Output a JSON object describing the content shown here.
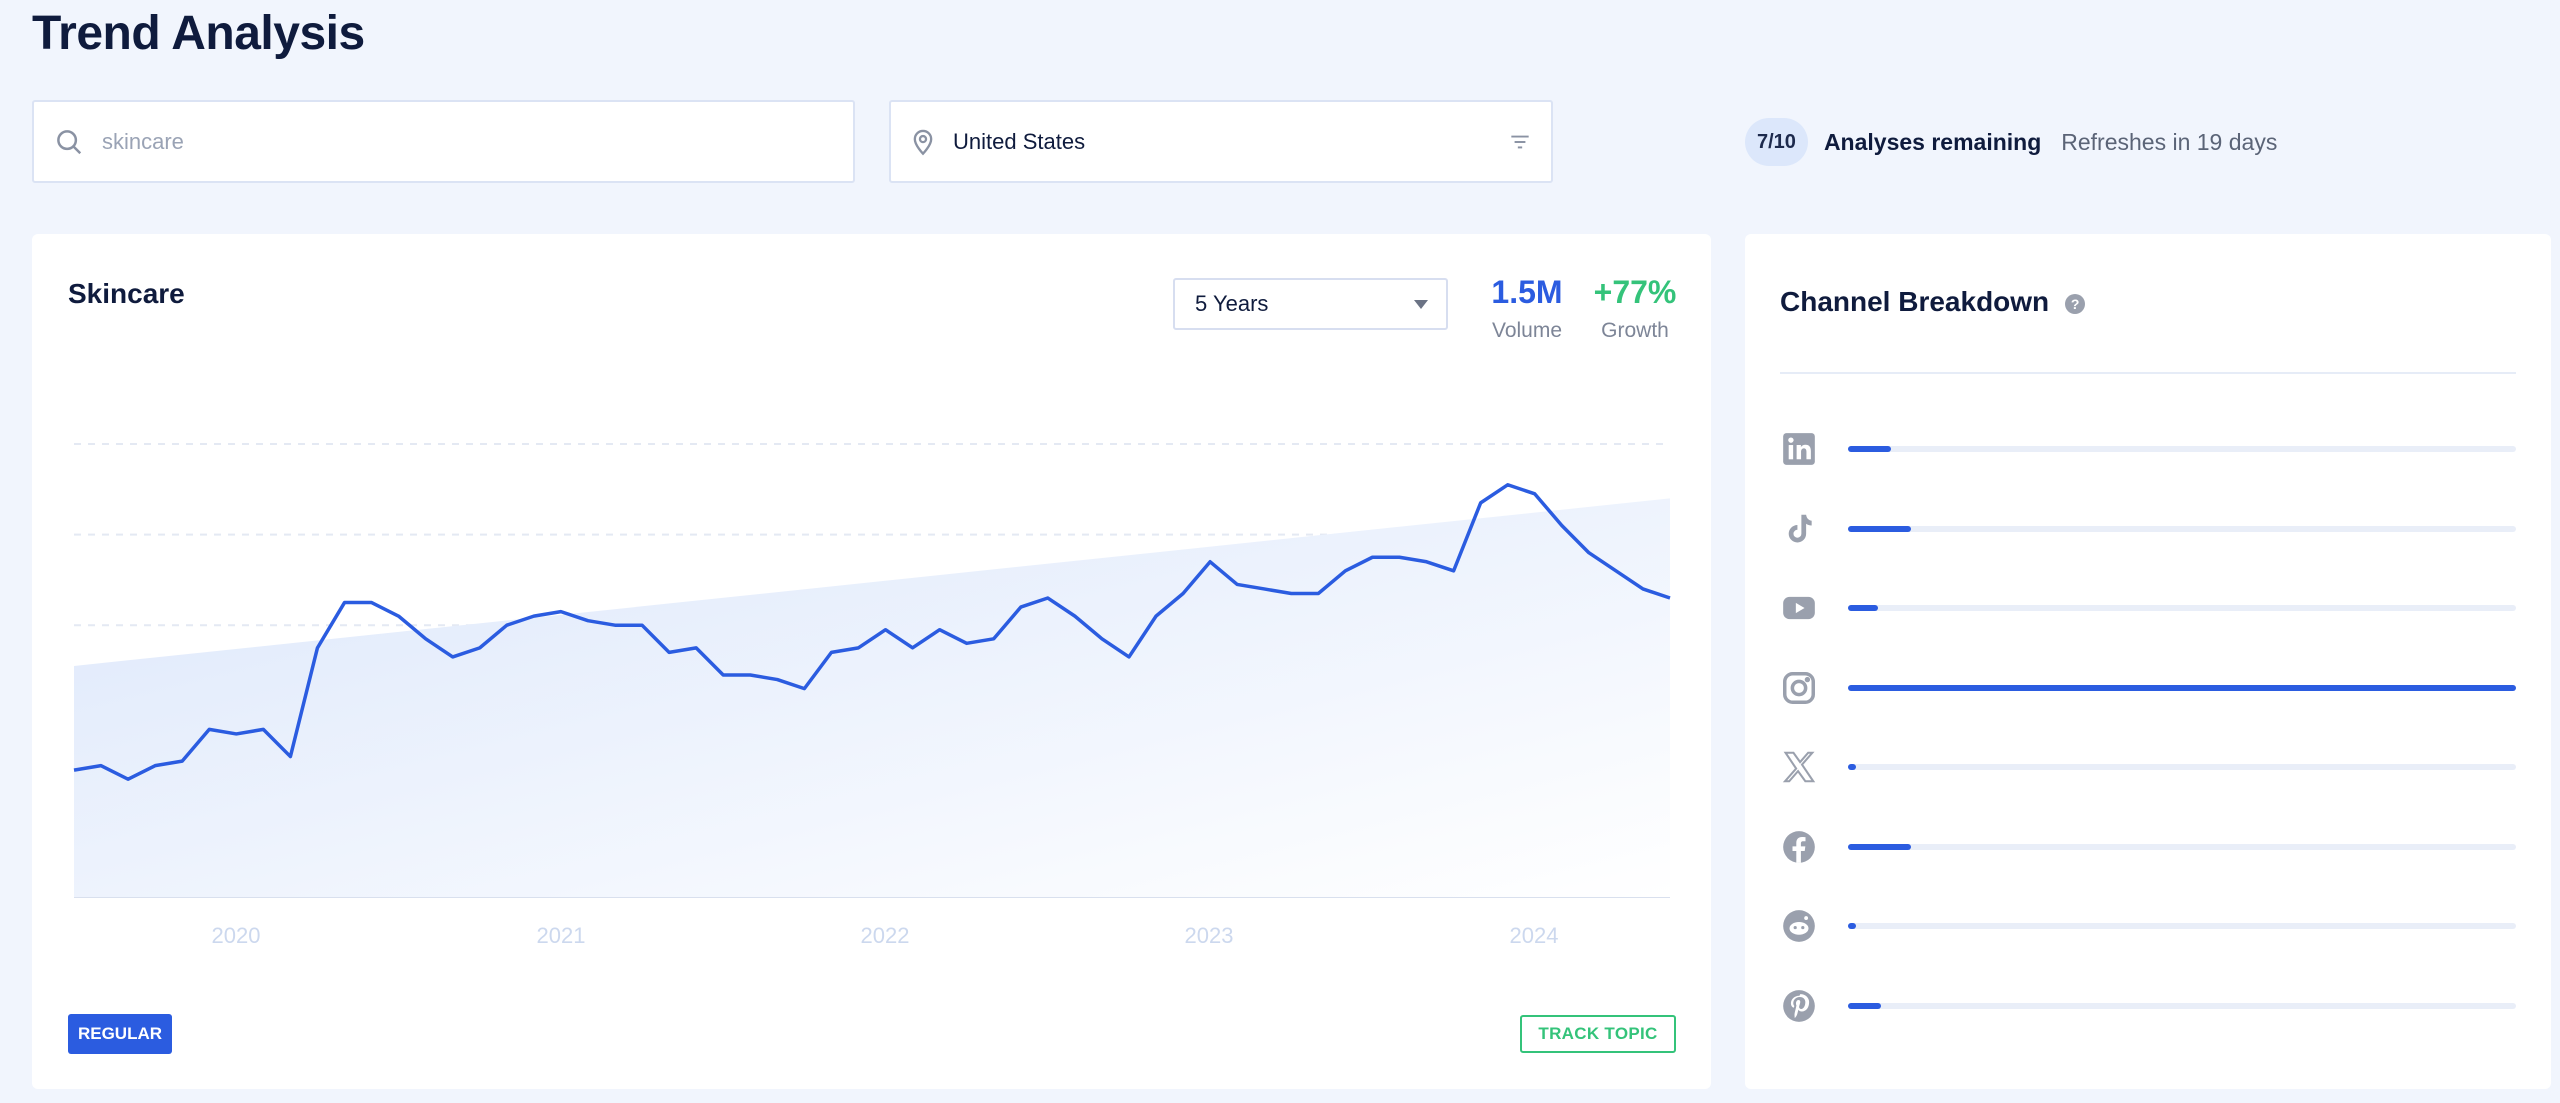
{
  "page": {
    "title": "Trend Analysis"
  },
  "search": {
    "placeholder": "skincare"
  },
  "location": {
    "value": "United States"
  },
  "quota": {
    "badge": "7/10",
    "label": "Analyses remaining",
    "refresh": "Refreshes in 19 days"
  },
  "topic": {
    "title": "Skincare",
    "period": "5 Years",
    "volume_value": "1.5M",
    "volume_label": "Volume",
    "growth_value": "+77%",
    "growth_label": "Growth",
    "type_badge": "REGULAR",
    "track_button": "TRACK TOPIC"
  },
  "colors": {
    "accent": "#2b5ce0",
    "growth": "#34c37a",
    "background": "#f1f5fd"
  },
  "chart_data": {
    "type": "line",
    "title": "",
    "xlabel": "",
    "ylabel": "",
    "x_ticks": [
      "2020",
      "2021",
      "2022",
      "2023",
      "2024"
    ],
    "grid": true,
    "series": [
      {
        "values": [
          28,
          29,
          26,
          29,
          30,
          37,
          36,
          37,
          31,
          55,
          65,
          65,
          62,
          57,
          53,
          55,
          60,
          62,
          63,
          61,
          60,
          60,
          54,
          55,
          49,
          49,
          48,
          46,
          54,
          55,
          59,
          55,
          59,
          56,
          57,
          64,
          66,
          62,
          57,
          53,
          62,
          67,
          74,
          69,
          68,
          67,
          67,
          72,
          75,
          75,
          74,
          72,
          87,
          91,
          89,
          82,
          76,
          72,
          68,
          66
        ]
      }
    ],
    "trend_band": {
      "start": 51,
      "end": 88
    }
  },
  "channels": {
    "title": "Channel Breakdown",
    "items": [
      {
        "name": "LinkedIn",
        "icon": "linkedin-icon",
        "share": 0.065
      },
      {
        "name": "TikTok",
        "icon": "tiktok-icon",
        "share": 0.095
      },
      {
        "name": "YouTube",
        "icon": "youtube-icon",
        "share": 0.045
      },
      {
        "name": "Instagram",
        "icon": "instagram-icon",
        "share": 1.0
      },
      {
        "name": "X",
        "icon": "x-icon",
        "share": 0.012
      },
      {
        "name": "Facebook",
        "icon": "facebook-icon",
        "share": 0.095
      },
      {
        "name": "Reddit",
        "icon": "reddit-icon",
        "share": 0.012
      },
      {
        "name": "Pinterest",
        "icon": "pinterest-icon",
        "share": 0.05
      }
    ]
  }
}
